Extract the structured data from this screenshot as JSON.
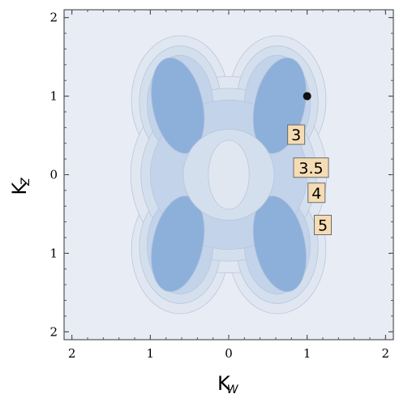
{
  "chart_data": {
    "type": "contour",
    "xlabel": "K",
    "xlabel_sub": "W",
    "ylabel": "K",
    "ylabel_sub": "Z",
    "xlim": [
      -2.1,
      2.1
    ],
    "ylim": [
      -2.1,
      2.1
    ],
    "x_ticks": [
      {
        "value": -2,
        "label": "2"
      },
      {
        "value": -1,
        "label": "1"
      },
      {
        "value": 0,
        "label": "0"
      },
      {
        "value": 1,
        "label": "1"
      },
      {
        "value": 2,
        "label": "2"
      }
    ],
    "y_ticks": [
      {
        "value": 2,
        "label": "2"
      },
      {
        "value": 1,
        "label": "1"
      },
      {
        "value": 0,
        "label": "0"
      },
      {
        "value": -1,
        "label": "1"
      },
      {
        "value": -2,
        "label": "2"
      }
    ],
    "contour_labels": [
      {
        "label": "3",
        "x": 0.86,
        "y": 0.51
      },
      {
        "label": "3.5",
        "x": 1.05,
        "y": 0.09
      },
      {
        "label": "4",
        "x": 1.12,
        "y": -0.23
      },
      {
        "label": "5",
        "x": 1.2,
        "y": -0.64
      }
    ],
    "marked_point": {
      "x": 1.0,
      "y": 1.0
    },
    "background_color": "#e8ecf5",
    "fill_colors": [
      "#e1e7f1",
      "#d4dfee",
      "#c3d3ea",
      "#a9c2e2",
      "#8db0db"
    ]
  }
}
